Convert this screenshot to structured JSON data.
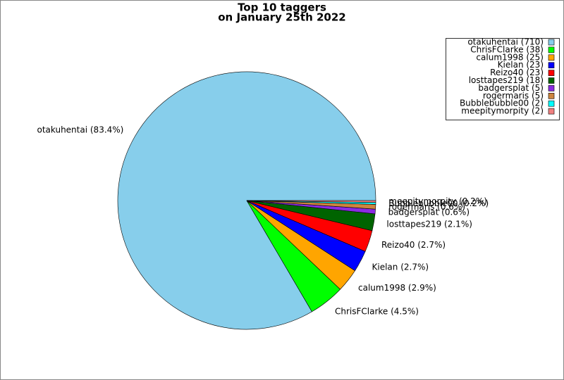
{
  "chart_data": {
    "type": "pie",
    "title": [
      "Top 10 taggers",
      "on January 25th 2022"
    ],
    "categories": [
      "otakuhentai (710)",
      "ChrisFClarke (38)",
      "calum1998 (25)",
      "Kielan (23)",
      "Reizo40 (23)",
      "losttapes219 (18)",
      "badgersplat (5)",
      "rogermaris (5)",
      "Bubblebubble00 (2)",
      "meepitymorpity (2)"
    ],
    "values": [
      710,
      38,
      25,
      23,
      23,
      18,
      5,
      5,
      2,
      2
    ],
    "slice_labels": [
      "otakuhentai (83.4%)",
      "ChrisFClarke (4.5%)",
      "calum1998 (2.9%)",
      "Kielan (2.7%)",
      "Reizo40 (2.7%)",
      "losttapes219 (2.1%)",
      "badgersplat (0.6%)",
      "rogermaris (0.6%)",
      "Bubblebubble00 (0.2%)",
      "meepitymorpity (0.2%)"
    ],
    "colors": [
      "#87ceeb",
      "#00ff00",
      "#ffa500",
      "#0000ff",
      "#ff0000",
      "#006400",
      "#8a2be2",
      "#cd853f",
      "#00ffff",
      "#f08080"
    ],
    "legend": "upper right"
  }
}
